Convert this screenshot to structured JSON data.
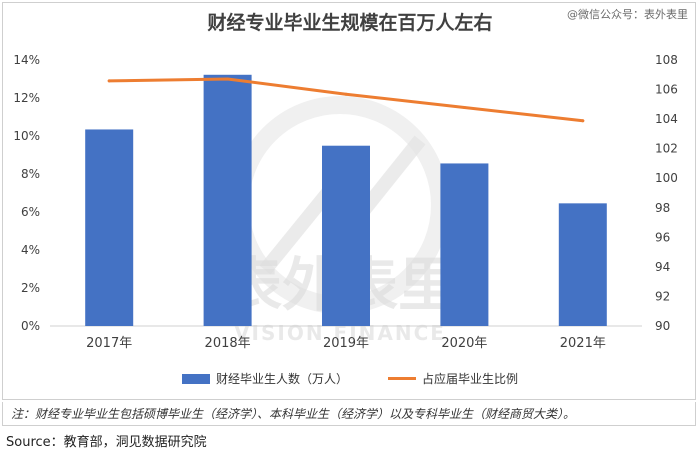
{
  "header": {
    "title": "财经专业毕业生规模在百万人左右",
    "watermark_tag": "@微信公众号：表外表里"
  },
  "watermark": {
    "brand_cn": "表外表里",
    "brand_en": "VISION FINANCE"
  },
  "legend": {
    "bar_label": "财经毕业生人数（万人）",
    "line_label": "占应届毕业生比例"
  },
  "note": "注：财经专业毕业生包括硕博毕业生（经济学）、本科毕业生（经济学）以及专科毕业生（财经商贸大类）。",
  "source": "Source：教育部，洞见数据研究院",
  "colors": {
    "bar": "#4472C4",
    "line": "#ED7D31"
  },
  "chart_data": {
    "type": "bar",
    "categories": [
      "2017年",
      "2018年",
      "2019年",
      "2020年",
      "2021年"
    ],
    "series": [
      {
        "name": "财经毕业生人数（万人）",
        "type": "bar",
        "axis": "right",
        "values": [
          103.3,
          107.0,
          102.2,
          101.0,
          98.3
        ]
      },
      {
        "name": "占应届毕业生比例",
        "type": "line",
        "axis": "left",
        "values": [
          12.9,
          13.0,
          12.2,
          11.5,
          10.8
        ]
      }
    ],
    "left_axis": {
      "ylim": [
        0,
        14
      ],
      "ticks": [
        "0%",
        "2%",
        "4%",
        "6%",
        "8%",
        "10%",
        "12%",
        "14%"
      ]
    },
    "right_axis": {
      "ylim": [
        90,
        108
      ],
      "ticks": [
        "90",
        "92",
        "94",
        "96",
        "98",
        "100",
        "102",
        "104",
        "106",
        "108"
      ]
    },
    "grid": false
  }
}
